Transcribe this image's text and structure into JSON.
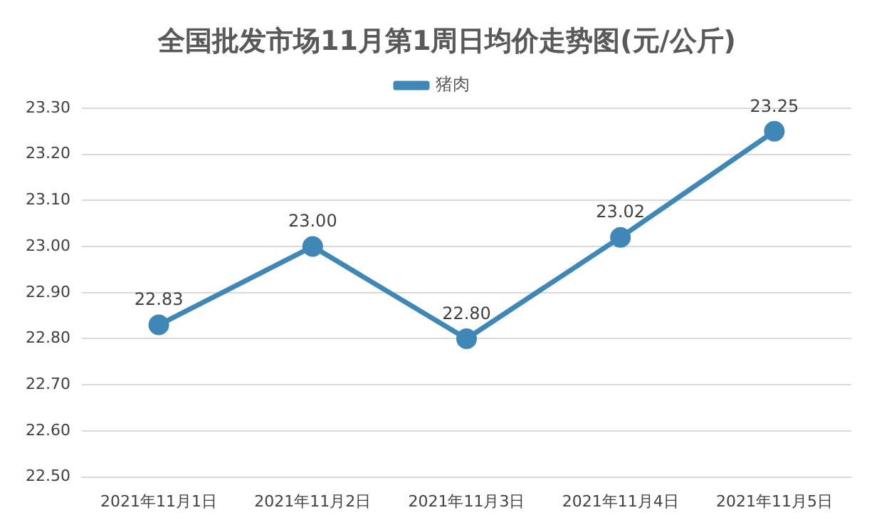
{
  "chart_data": {
    "type": "line",
    "title": "全国批发市场11月第1周日均价走势图(元/公斤)",
    "categories": [
      "2021年11月1日",
      "2021年11月2日",
      "2021年11月3日",
      "2021年11月4日",
      "2021年11月5日"
    ],
    "series": [
      {
        "name": "猪肉",
        "color": "#3f87b6",
        "values": [
          22.83,
          23.0,
          22.8,
          23.02,
          23.25
        ],
        "value_labels": [
          "22.83",
          "23.00",
          "22.80",
          "23.02",
          "23.25"
        ]
      }
    ],
    "ylim": [
      22.5,
      23.3
    ],
    "yticks": [
      {
        "value": 22.5,
        "label": "22.50"
      },
      {
        "value": 22.6,
        "label": "22.60"
      },
      {
        "value": 22.7,
        "label": "22.70"
      },
      {
        "value": 22.8,
        "label": "22.80"
      },
      {
        "value": 22.9,
        "label": "22.90"
      },
      {
        "value": 23.0,
        "label": "23.00"
      },
      {
        "value": 23.1,
        "label": "23.10"
      },
      {
        "value": 23.2,
        "label": "23.20"
      },
      {
        "value": 23.3,
        "label": "23.30"
      }
    ],
    "grid": "y",
    "legend": "top",
    "marker": "circle",
    "line_style": "solid"
  }
}
